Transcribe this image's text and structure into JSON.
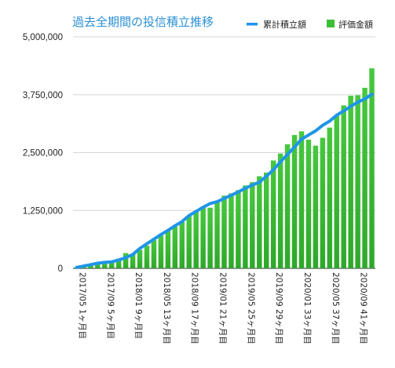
{
  "chart_data": {
    "type": "bar",
    "title": "過去全期間の投信積立推移",
    "legend": [
      {
        "name": "累計積立額",
        "kind": "line",
        "color": "#1f95e8"
      },
      {
        "name": "評価金額",
        "kind": "bar",
        "color": "#3cbf35"
      }
    ],
    "legend_position": "top-right",
    "ylim": [
      0,
      5000000
    ],
    "yticks": [
      "0",
      "1,250,000",
      "2,500,000",
      "3,750,000",
      "5,000,000"
    ],
    "ytick_values": [
      0,
      1250000,
      2500000,
      3750000,
      5000000
    ],
    "x_tick_labels": [
      {
        "index": 0,
        "label": "2017/05 1ヶ月目"
      },
      {
        "index": 4,
        "label": "2017/09 5ヶ月目"
      },
      {
        "index": 8,
        "label": "2018/01 9ヶ月目"
      },
      {
        "index": 12,
        "label": "2018/05 13ヶ月目"
      },
      {
        "index": 16,
        "label": "2018/09 17ヶ月目"
      },
      {
        "index": 20,
        "label": "2019/01 21ヶ月目"
      },
      {
        "index": 24,
        "label": "2019/05 25ヶ月目"
      },
      {
        "index": 28,
        "label": "2019/09 29ヶ月目"
      },
      {
        "index": 32,
        "label": "2020/01 33ヶ月目"
      },
      {
        "index": 36,
        "label": "2020/05 37ヶ月目"
      },
      {
        "index": 40,
        "label": "2020/09 41ヶ月目"
      }
    ],
    "series": [
      {
        "name": "評価金額",
        "type": "bar",
        "color": "#3cbf35",
        "values": [
          20000,
          45000,
          70000,
          100000,
          130000,
          155000,
          210000,
          330000,
          310000,
          400000,
          490000,
          610000,
          710000,
          820000,
          900000,
          1000000,
          1130000,
          1230000,
          1330000,
          1310000,
          1450000,
          1570000,
          1620000,
          1690000,
          1790000,
          1860000,
          1990000,
          2070000,
          2330000,
          2480000,
          2680000,
          2880000,
          2960000,
          2780000,
          2650000,
          2820000,
          3040000,
          3310000,
          3520000,
          3730000,
          3740000,
          3900000,
          4320000
        ]
      },
      {
        "name": "累計積立額",
        "type": "line",
        "color": "#1f95e8",
        "values": [
          20000,
          50000,
          80000,
          110000,
          130000,
          140000,
          180000,
          230000,
          300000,
          430000,
          530000,
          630000,
          730000,
          820000,
          920000,
          1010000,
          1140000,
          1230000,
          1320000,
          1400000,
          1440000,
          1510000,
          1580000,
          1650000,
          1730000,
          1800000,
          1860000,
          1990000,
          2130000,
          2300000,
          2460000,
          2620000,
          2790000,
          2880000,
          2970000,
          3090000,
          3180000,
          3310000,
          3400000,
          3500000,
          3590000,
          3660000,
          3760000
        ]
      }
    ]
  }
}
